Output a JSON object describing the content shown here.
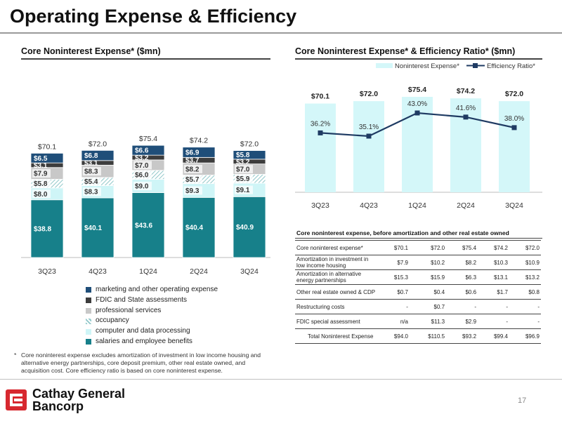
{
  "slide": {
    "title": "Operating Expense & Efficiency",
    "page_number": "17",
    "logo_line1": "Cathay General",
    "logo_line2": "Bancorp",
    "footnote_mark": "*",
    "footnote": "Core noninterest expense excludes amortization of investment in low income housing and alternative energy partnerships, core deposit premium, other real estate owned, and acquisition cost. Core efficiency ratio is based on core noninterest expense."
  },
  "chart_data": [
    {
      "type": "bar",
      "stacked": true,
      "title": "Core Noninterest Expense* ($mn)",
      "categories": [
        "3Q23",
        "4Q23",
        "1Q24",
        "2Q24",
        "3Q24"
      ],
      "totals": [
        "$70.1",
        "$72.0",
        "$75.4",
        "$74.2",
        "$72.0"
      ],
      "total_values": [
        70.1,
        72.0,
        75.4,
        74.2,
        72.0
      ],
      "series": [
        {
          "name": "salaries and employee benefits",
          "color": "#17808a",
          "values": [
            38.8,
            40.1,
            43.6,
            40.4,
            40.9
          ],
          "labels": [
            "$38.8",
            "$40.1",
            "$43.6",
            "$40.4",
            "$40.9"
          ]
        },
        {
          "name": "computer and data processing",
          "color": "#cff5f7",
          "values": [
            8.0,
            8.3,
            9.0,
            9.3,
            9.1
          ],
          "labels": [
            "$8.0",
            "$8.3",
            "$9.0",
            "$9.3",
            "$9.1"
          ]
        },
        {
          "name": "occupancy",
          "color": "#9fd0d2",
          "pattern": true,
          "values": [
            5.8,
            5.4,
            6.0,
            5.7,
            5.9
          ],
          "labels": [
            "$5.8",
            "$5.4",
            "$6.0",
            "$5.7",
            "$5.9"
          ]
        },
        {
          "name": "professional services",
          "color": "#c8c8c8",
          "values": [
            7.9,
            8.3,
            7.0,
            8.2,
            7.0
          ],
          "labels": [
            "$7.9",
            "$8.3",
            "$7.0",
            "$8.2",
            "$7.0"
          ]
        },
        {
          "name": "FDIC and State assessments",
          "color": "#3d3d3d",
          "values": [
            3.1,
            3.1,
            3.2,
            3.7,
            3.2
          ],
          "labels": [
            "$3.1",
            "$3.1",
            "$3.2",
            "$3.7",
            "$3.2"
          ]
        },
        {
          "name": "marketing and other operating expense",
          "color": "#1f4e79",
          "values": [
            6.5,
            6.8,
            6.6,
            6.9,
            5.8
          ],
          "labels": [
            "$6.5",
            "$6.8",
            "$6.6",
            "$6.9",
            "$5.8"
          ]
        }
      ],
      "legend_order": [
        5,
        4,
        3,
        2,
        1,
        0
      ]
    },
    {
      "type": "bar+line",
      "title": "Core Noninterest Expense* & Efficiency Ratio* ($mn)",
      "categories": [
        "3Q23",
        "4Q23",
        "1Q24",
        "2Q24",
        "3Q24"
      ],
      "bar_series": {
        "name": "Noninterest Expense*",
        "color": "#d4f7f9",
        "values": [
          70.1,
          72.0,
          75.4,
          74.2,
          72.0
        ],
        "labels": [
          "$70.1",
          "$72.0",
          "$75.4",
          "$74.2",
          "$72.0"
        ]
      },
      "line_series": {
        "name": "Efficiency Ratio*",
        "color": "#1f3b63",
        "values": [
          36.2,
          35.1,
          43.0,
          41.6,
          38.0
        ],
        "labels": [
          "36.2%",
          "35.1%",
          "43.0%",
          "41.6%",
          "38.0%"
        ]
      },
      "legend_position": "top"
    },
    {
      "type": "table",
      "title": "Core noninterest expense, before amortization and other real estate owned",
      "rows": [
        {
          "label": "Core noninterest expense*",
          "values": [
            "$70.1",
            "$72.0",
            "$75.4",
            "$74.2",
            "$72.0"
          ]
        },
        {
          "label": "Amortization in investment in low income housing",
          "values": [
            "$7.9",
            "$10.2",
            "$8.2",
            "$10.3",
            "$10.9"
          ]
        },
        {
          "label": "Amortization in alternative energy partnerships",
          "values": [
            "$15.3",
            "$15.9",
            "$6.3",
            "$13.1",
            "$13.2"
          ]
        },
        {
          "label": "Other real estate owned & CDP",
          "values": [
            "$0.7",
            "$0.4",
            "$0.6",
            "$1.7",
            "$0.8"
          ]
        },
        {
          "label": "Restructuring costs",
          "values": [
            "-",
            "$0.7",
            "-",
            "-",
            "-"
          ]
        },
        {
          "label": "FDIC special assessment",
          "values": [
            "n/a",
            "$11.3",
            "$2.9",
            "-",
            "-"
          ]
        }
      ],
      "total_row": {
        "label": "Total Noninterest Expense",
        "values": [
          "$94.0",
          "$110.5",
          "$93.2",
          "$99.4",
          "$96.9"
        ]
      }
    }
  ]
}
